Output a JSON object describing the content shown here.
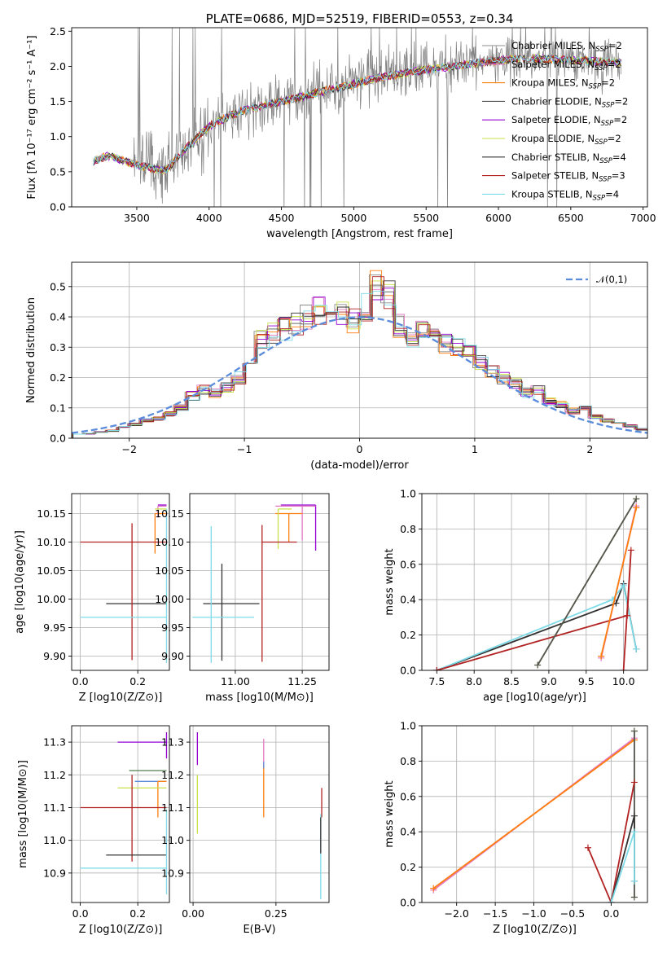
{
  "chart_data": [
    {
      "type": "line",
      "id": "spectrum",
      "title": "PLATE=0686, MJD=52519, FIBERID=0553, z=0.34",
      "xlabel": "wavelength [Angstrom, rest frame]",
      "ylabel": "Flux [f_λ 10^-17 erg cm^-2 s^-1 A^-1]",
      "xlim": [
        3050,
        7030
      ],
      "ylim": [
        0,
        2.55
      ],
      "xticks": [
        3500,
        4000,
        4500,
        5000,
        5500,
        6000,
        6500,
        7000
      ],
      "yticks": [
        0.0,
        0.5,
        1.0,
        1.5,
        2.0,
        2.5
      ],
      "grid": false,
      "legend_position": "right",
      "data_series": {
        "name": "data",
        "color": "#808080",
        "x": [
          3200,
          3300,
          3400,
          3500,
          3600,
          3700,
          3800,
          3900,
          4000,
          4200,
          4400,
          4600,
          4800,
          5000,
          5200,
          5400,
          5600,
          5800,
          6000,
          6200,
          6400,
          6600,
          6850
        ],
        "y": [
          0.68,
          0.72,
          0.66,
          0.62,
          0.58,
          0.55,
          0.65,
          0.85,
          1.15,
          1.35,
          1.45,
          1.55,
          1.65,
          1.78,
          1.88,
          1.95,
          2.0,
          2.05,
          2.1,
          2.15,
          2.12,
          2.1,
          2.05
        ]
      },
      "model_series": [
        {
          "name": "Chabrier MILES",
          "nssp": "2",
          "color": "#8c8c8c"
        },
        {
          "name": "Salpeter MILES",
          "nssp": "2",
          "color": "#e377c2"
        },
        {
          "name": "Kroupa MILES",
          "nssp": "2",
          "color": "#ff7f0e"
        },
        {
          "name": "Chabrier ELODIE",
          "nssp": "2",
          "color": "#555555"
        },
        {
          "name": "Salpeter ELODIE",
          "nssp": "2",
          "color": "#9400d3"
        },
        {
          "name": "Kroupa ELODIE",
          "nssp": "2",
          "color": "#c8e04a"
        },
        {
          "name": "Chabrier STELIB",
          "nssp": "4",
          "color": "#333333"
        },
        {
          "name": "Salpeter STELIB",
          "nssp": "3",
          "color": "#b22222"
        },
        {
          "name": "Kroupa STELIB",
          "nssp": "4",
          "color": "#7fdbe8"
        }
      ],
      "model_curve": {
        "x": [
          3200,
          3300,
          3400,
          3500,
          3600,
          3700,
          3800,
          3900,
          4000,
          4200,
          4400,
          4600,
          4800,
          5000,
          5200,
          5400,
          5600,
          5800,
          6000,
          6200,
          6400,
          6600,
          6850
        ],
        "y": [
          0.65,
          0.73,
          0.66,
          0.6,
          0.55,
          0.52,
          0.75,
          0.95,
          1.15,
          1.35,
          1.45,
          1.55,
          1.65,
          1.75,
          1.85,
          1.92,
          1.98,
          2.03,
          2.08,
          2.12,
          2.1,
          2.08,
          2.05
        ]
      }
    },
    {
      "type": "line",
      "id": "residuals",
      "xlabel": "(data-model)/error",
      "ylabel": "Normed distribution",
      "xlim": [
        -2.5,
        2.5
      ],
      "ylim": [
        0,
        0.58
      ],
      "xticks": [
        -2,
        -1,
        0,
        1,
        2
      ],
      "yticks": [
        0.0,
        0.1,
        0.2,
        0.3,
        0.4,
        0.5
      ],
      "grid": true,
      "legend": "N(0,1)",
      "legend_position": "top-right",
      "bin_edges_start": -2.5,
      "bin_width": 0.1,
      "base_hist": [
        0.015,
        0.015,
        0.02,
        0.025,
        0.035,
        0.045,
        0.06,
        0.065,
        0.08,
        0.1,
        0.14,
        0.16,
        0.15,
        0.17,
        0.2,
        0.25,
        0.33,
        0.35,
        0.36,
        0.38,
        0.4,
        0.42,
        0.43,
        0.41,
        0.39,
        0.43,
        0.5,
        0.47,
        0.37,
        0.33,
        0.37,
        0.35,
        0.31,
        0.3,
        0.28,
        0.25,
        0.22,
        0.2,
        0.18,
        0.15,
        0.16,
        0.12,
        0.11,
        0.09,
        0.1,
        0.07,
        0.06,
        0.05,
        0.04,
        0.03
      ],
      "hist_series": [
        {
          "name": "Chabrier MILES",
          "color": "#8c8c8c"
        },
        {
          "name": "Salpeter MILES",
          "color": "#e377c2"
        },
        {
          "name": "Kroupa MILES",
          "color": "#ff7f0e"
        },
        {
          "name": "Chabrier ELODIE",
          "color": "#555555"
        },
        {
          "name": "Salpeter ELODIE",
          "color": "#9400d3"
        },
        {
          "name": "Kroupa ELODIE",
          "color": "#c8e04a"
        },
        {
          "name": "Chabrier STELIB",
          "color": "#333333"
        },
        {
          "name": "Salpeter STELIB",
          "color": "#b22222"
        },
        {
          "name": "Kroupa STELIB",
          "color": "#7fdbe8"
        }
      ],
      "gaussian_color": "#5b8bdb"
    },
    {
      "type": "scatter",
      "id": "age-vs-Z",
      "xlabel": "Z [log10(Z/Z⊙)]",
      "ylabel": "age  [log10(age/yr)]",
      "xlim": [
        -0.03,
        0.31
      ],
      "ylim": [
        9.875,
        10.185
      ],
      "xticks": [
        0.0,
        0.2
      ],
      "yticks": [
        9.9,
        9.95,
        10.0,
        10.05,
        10.1,
        10.15
      ],
      "grid": true,
      "errorbars": [
        {
          "color": "#e377c2",
          "x": 0.27,
          "y": 10.163,
          "xerr": [
            0.0,
            0.03
          ],
          "yerr": [
            0.02,
            0.0
          ]
        },
        {
          "color": "#9400d3",
          "x": 0.27,
          "y": 10.165,
          "xerr": [
            0.0,
            0.03
          ],
          "yerr": [
            0.0,
            0.0
          ]
        },
        {
          "color": "#ff7f0e",
          "x": 0.26,
          "y": 10.15,
          "xerr": [
            0.0,
            0.04
          ],
          "yerr": [
            0.07,
            0.0
          ]
        },
        {
          "color": "#c8e04a",
          "x": 0.26,
          "y": 10.158,
          "xerr": [
            0.0,
            0.04
          ],
          "yerr": [
            0.0,
            0.0
          ]
        },
        {
          "color": "#333333",
          "x": 0.09,
          "y": 9.992,
          "xerr": [
            0.0,
            0.21
          ],
          "yerr": [
            0.0,
            0.0
          ]
        },
        {
          "color": "#b22222",
          "x": 0.18,
          "y": 10.1,
          "xerr": [
            0.18,
            0.12
          ],
          "yerr": [
            0.207,
            0.033
          ]
        },
        {
          "color": "#7fdbe8",
          "x": 0.3,
          "y": 9.968,
          "xerr": [
            0.3,
            0.0
          ],
          "yerr": [
            0.08,
            0.19
          ]
        }
      ]
    },
    {
      "type": "scatter",
      "id": "age-vs-mass",
      "xlabel": "mass [log10(M/M⊙)]",
      "ylabel": "",
      "xlim": [
        10.83,
        11.35
      ],
      "ylim": [
        9.875,
        10.185
      ],
      "xticks": [
        11.0,
        11.25
      ],
      "yticks": [
        9.9,
        9.95,
        10.0,
        10.05,
        10.1,
        10.15
      ],
      "grid": true,
      "errorbars": [
        {
          "color": "#9400d3",
          "x": 11.3,
          "y": 10.165,
          "xerr": [
            0.13,
            0.0
          ],
          "yerr": [
            0.08,
            0.0
          ]
        },
        {
          "color": "#e377c2",
          "x": 11.25,
          "y": 10.163,
          "xerr": [
            0.1,
            0.05
          ],
          "yerr": [
            0.06,
            0.0
          ]
        },
        {
          "color": "#ff7f0e",
          "x": 11.2,
          "y": 10.15,
          "xerr": [
            0.05,
            0.05
          ],
          "yerr": [
            0.05,
            0.0
          ]
        },
        {
          "color": "#c8e04a",
          "x": 11.16,
          "y": 10.158,
          "xerr": [
            0.0,
            0.05
          ],
          "yerr": [
            0.07,
            0.0
          ]
        },
        {
          "color": "#333333",
          "x": 10.95,
          "y": 9.992,
          "xerr": [
            0.07,
            0.14
          ],
          "yerr": [
            0.1,
            0.07
          ]
        },
        {
          "color": "#b22222",
          "x": 11.1,
          "y": 10.1,
          "xerr": [
            0.0,
            0.13
          ],
          "yerr": [
            0.21,
            0.03
          ]
        },
        {
          "color": "#7fdbe8",
          "x": 10.91,
          "y": 9.968,
          "xerr": [
            0.07,
            0.16
          ],
          "yerr": [
            0.08,
            0.16
          ]
        }
      ]
    },
    {
      "type": "line",
      "id": "weight-vs-age",
      "xlabel": "age  [log10(age/yr)]",
      "ylabel": "mass weight",
      "xlim": [
        7.3,
        10.32
      ],
      "ylim": [
        0,
        1.0
      ],
      "xticks": [
        7.5,
        8.0,
        8.5,
        9.0,
        9.5,
        10.0
      ],
      "yticks": [
        0.0,
        0.2,
        0.4,
        0.6,
        0.8,
        1.0
      ],
      "grid": true,
      "series": [
        {
          "name": "Chabrier STELIB",
          "color": "#333333",
          "x": [
            7.5,
            9.9,
            10.0,
            10.17
          ],
          "y": [
            0.0,
            0.38,
            0.49,
            0.12
          ]
        },
        {
          "name": "Kroupa STELIB",
          "color": "#7fdbe8",
          "x": [
            7.5,
            9.85,
            10.0,
            10.17
          ],
          "y": [
            0.0,
            0.4,
            0.48,
            0.12
          ]
        },
        {
          "name": "Salpeter STELIB",
          "color": "#b22222",
          "x": [
            7.5,
            10.05,
            10.1,
            10.0
          ],
          "y": [
            0.0,
            0.31,
            0.68,
            0.0
          ]
        },
        {
          "name": "Kroupa ELODIE",
          "color": "#c8e04a",
          "x": [
            8.85,
            10.17
          ],
          "y": [
            0.03,
            0.97
          ]
        },
        {
          "name": "Chabrier ELODIE",
          "color": "#555555",
          "x": [
            8.85,
            10.17
          ],
          "y": [
            0.03,
            0.97
          ]
        },
        {
          "name": "Salpeter MILES",
          "color": "#e377c2",
          "x": [
            9.7,
            10.17
          ],
          "y": [
            0.07,
            0.93
          ]
        },
        {
          "name": "Kroupa MILES",
          "color": "#ff7f0e",
          "x": [
            9.7,
            10.17
          ],
          "y": [
            0.08,
            0.92
          ]
        }
      ]
    },
    {
      "type": "scatter",
      "id": "mass-vs-Z",
      "xlabel": "Z [log10(Z/Z⊙)]",
      "ylabel": "mass [log10(M/M⊙)]",
      "xlim": [
        -0.03,
        0.31
      ],
      "ylim": [
        10.81,
        11.35
      ],
      "xticks": [
        0.0,
        0.2
      ],
      "yticks": [
        10.9,
        11.0,
        11.1,
        11.2,
        11.3
      ],
      "grid": true,
      "errorbars": [
        {
          "color": "#9400d3",
          "x": 0.3,
          "y": 11.3,
          "xerr": [
            0.17,
            0.0
          ],
          "yerr": [
            0.05,
            0.03
          ]
        },
        {
          "color": "#5e8b5e",
          "x": 0.3,
          "y": 11.213,
          "xerr": [
            0.13,
            0.0
          ],
          "yerr": [
            0.0,
            0.0
          ]
        },
        {
          "color": "#5b8bdb",
          "x": 0.3,
          "y": 11.18,
          "xerr": [
            0.11,
            0.0
          ],
          "yerr": [
            0.0,
            0.0
          ]
        },
        {
          "color": "#ff7f0e",
          "x": 0.27,
          "y": 11.18,
          "xerr": [
            0.0,
            0.03
          ],
          "yerr": [
            0.11,
            0.0
          ]
        },
        {
          "color": "#c8e04a",
          "x": 0.3,
          "y": 11.16,
          "xerr": [
            0.17,
            0.0
          ],
          "yerr": [
            0.0,
            0.0
          ]
        },
        {
          "color": "#b22222",
          "x": 0.18,
          "y": 11.1,
          "xerr": [
            0.18,
            0.12
          ],
          "yerr": [
            0.165,
            0.1
          ]
        },
        {
          "color": "#333333",
          "x": 0.3,
          "y": 10.955,
          "xerr": [
            0.21,
            0.0
          ],
          "yerr": [
            0.0,
            0.0
          ]
        },
        {
          "color": "#7fdbe8",
          "x": 0.3,
          "y": 10.915,
          "xerr": [
            0.3,
            0.0
          ],
          "yerr": [
            0.08,
            0.18
          ]
        }
      ]
    },
    {
      "type": "scatter",
      "id": "mass-vs-EBV",
      "xlabel": "E(B-V)",
      "ylabel": "",
      "xlim": [
        -0.01,
        0.41
      ],
      "ylim": [
        10.81,
        11.35
      ],
      "xticks": [
        0.0,
        0.25
      ],
      "yticks": [
        10.9,
        11.0,
        11.1,
        11.2,
        11.3
      ],
      "grid": true,
      "errorbars": [
        {
          "color": "#9400d3",
          "x": 0.013,
          "y": 11.3,
          "xerr": [
            0,
            0
          ],
          "yerr": [
            0.07,
            0.03
          ]
        },
        {
          "color": "#c8e04a",
          "x": 0.013,
          "y": 11.15,
          "xerr": [
            0,
            0
          ],
          "yerr": [
            0.13,
            0.05
          ]
        },
        {
          "color": "#e377c2",
          "x": 0.213,
          "y": 11.26,
          "xerr": [
            0,
            0
          ],
          "yerr": [
            0.03,
            0.05
          ]
        },
        {
          "color": "#ff7f0e",
          "x": 0.213,
          "y": 11.17,
          "xerr": [
            0,
            0
          ],
          "yerr": [
            0.1,
            0.06
          ]
        },
        {
          "color": "#5b8bdb",
          "x": 0.213,
          "y": 11.22,
          "xerr": [
            0,
            0
          ],
          "yerr": [
            0.0,
            0.02
          ]
        },
        {
          "color": "#b22222",
          "x": 0.388,
          "y": 11.1,
          "xerr": [
            0,
            0
          ],
          "yerr": [
            0.03,
            0.06
          ]
        },
        {
          "color": "#7fdbe8",
          "x": 0.385,
          "y": 10.92,
          "xerr": [
            0,
            0
          ],
          "yerr": [
            0.1,
            0.16
          ]
        },
        {
          "color": "#333333",
          "x": 0.385,
          "y": 10.96,
          "xerr": [
            0,
            0
          ],
          "yerr": [
            0.0,
            0.11
          ]
        }
      ]
    },
    {
      "type": "line",
      "id": "weight-vs-Z",
      "xlabel": "Z [log10(Z/Z⊙)]",
      "ylabel": "mass weight",
      "xlim": [
        -2.45,
        0.47
      ],
      "ylim": [
        0,
        1.0
      ],
      "xticks": [
        -2.0,
        -1.5,
        -1.0,
        -0.5,
        0.0
      ],
      "yticks": [
        0.0,
        0.2,
        0.4,
        0.6,
        0.8,
        1.0
      ],
      "grid": true,
      "series": [
        {
          "name": "Salpeter MILES",
          "color": "#e377c2",
          "x": [
            -2.3,
            0.3
          ],
          "y": [
            0.07,
            0.93
          ]
        },
        {
          "name": "Kroupa MILES",
          "color": "#ff7f0e",
          "x": [
            -2.3,
            0.3
          ],
          "y": [
            0.08,
            0.92
          ]
        },
        {
          "name": "Kroupa ELODIE",
          "color": "#c8e04a",
          "x": [
            0.3,
            0.3
          ],
          "y": [
            0.03,
            0.97
          ]
        },
        {
          "name": "Chabrier ELODIE",
          "color": "#555555",
          "x": [
            0.3,
            0.3
          ],
          "y": [
            0.03,
            0.97
          ]
        },
        {
          "name": "Salpeter STELIB",
          "color": "#b22222",
          "x": [
            -0.3,
            0.0,
            0.3
          ],
          "y": [
            0.31,
            0.0,
            0.68
          ]
        },
        {
          "name": "Chabrier STELIB",
          "color": "#333333",
          "x": [
            0.0,
            0.3,
            0.3
          ],
          "y": [
            0.0,
            0.49,
            0.12
          ]
        },
        {
          "name": "Kroupa STELIB",
          "color": "#7fdbe8",
          "x": [
            0.0,
            0.3,
            0.3
          ],
          "y": [
            0.0,
            0.4,
            0.12
          ]
        }
      ]
    }
  ]
}
